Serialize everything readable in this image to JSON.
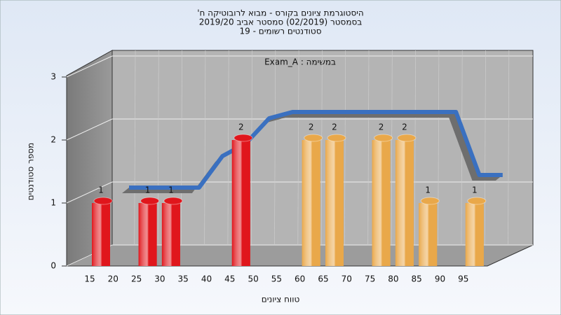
{
  "chart_data": {
    "type": "bar",
    "title_lines": [
      "היסטוגרמת ציונים בקורס - מבוא לרובוטיקה ח'",
      "בסמסטר  (02/2019)  סמסטר אביב 2019/20",
      "סטודנטים רשומים - 19"
    ],
    "annotation": "במשימה : Exam_A",
    "x_label": "טווח ציונים",
    "y_label": "מספר סטודנטים",
    "categories": [
      "15",
      "20",
      "25",
      "30",
      "35",
      "40",
      "45",
      "50",
      "55",
      "60",
      "65",
      "70",
      "75",
      "80",
      "85",
      "90",
      "95"
    ],
    "values": [
      1,
      null,
      1,
      1,
      null,
      null,
      2,
      null,
      null,
      2,
      2,
      null,
      2,
      2,
      1,
      null,
      1
    ],
    "colors": [
      "#e0161c",
      null,
      "#e0161c",
      "#e0161c",
      null,
      null,
      "#e0161c",
      null,
      null,
      "#e9a84a",
      "#e9a84a",
      null,
      "#e9a84a",
      "#e9a84a",
      "#e9a84a",
      null,
      "#e9a84a"
    ],
    "trend": {
      "values": [
        1,
        1,
        1,
        1,
        1.5,
        1.7,
        2.1,
        2.2,
        2.2,
        2.2,
        2.2,
        2.2,
        2.2,
        2.2,
        2.2,
        1.2,
        1.2
      ],
      "color": "#3a70c0",
      "back_color": "#6e6e6e"
    },
    "ylim": [
      0,
      3
    ],
    "yticks": [
      0,
      1,
      2,
      3
    ],
    "grid": true
  }
}
